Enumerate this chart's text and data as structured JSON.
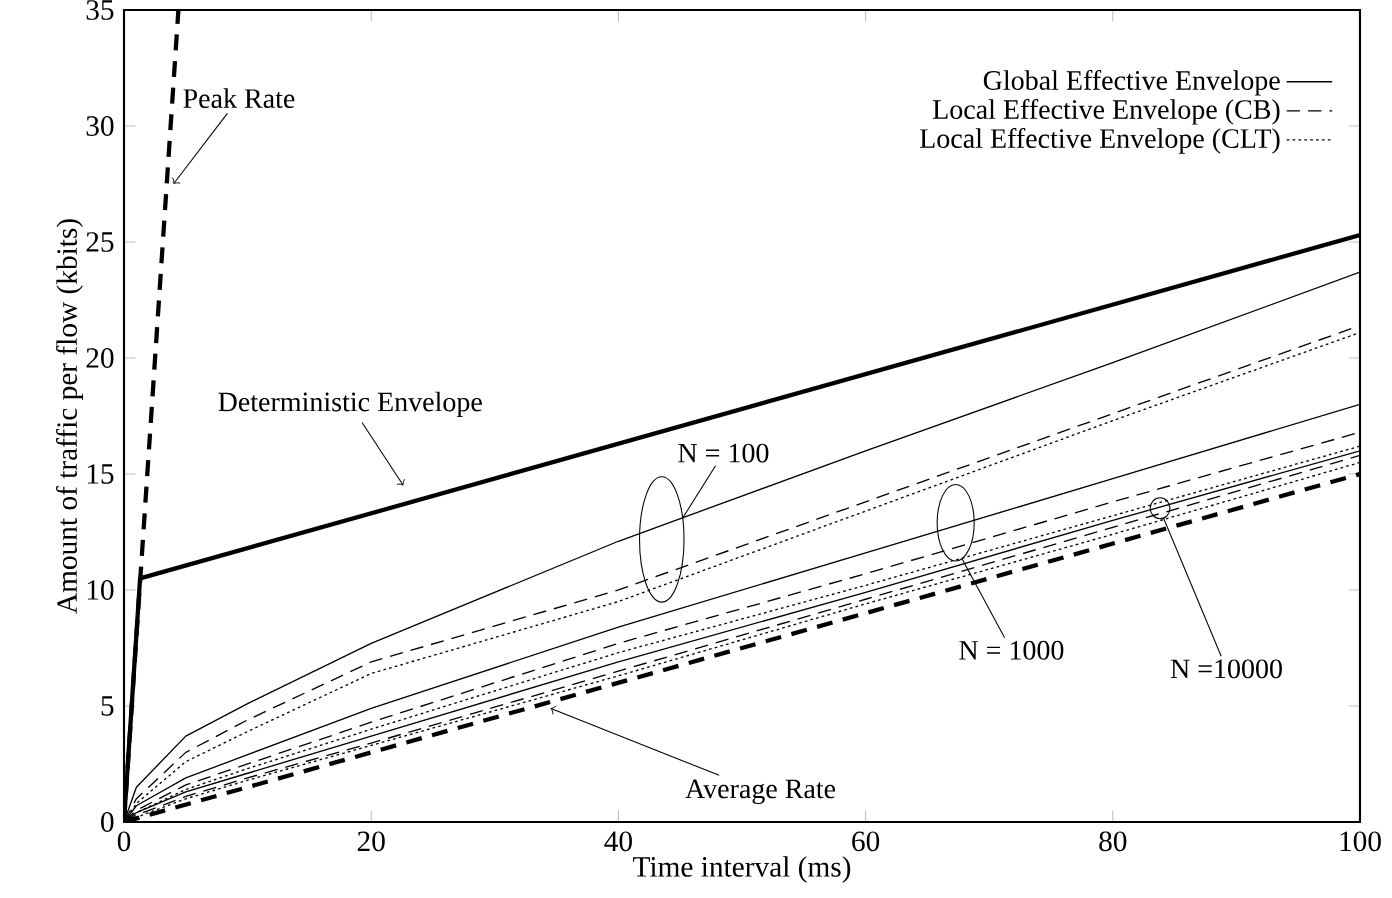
{
  "chart_data": {
    "type": "line",
    "xlabel": "Time interval (ms)",
    "ylabel": "Amount of traffic per flow (kbits)",
    "xlim": [
      0,
      100
    ],
    "ylim": [
      0,
      35
    ],
    "xticks": [
      0,
      20,
      40,
      60,
      80,
      100
    ],
    "yticks": [
      0,
      5,
      10,
      15,
      20,
      25,
      30,
      35
    ],
    "legend": "top right",
    "marker": "none",
    "series": [
      {
        "color": "#000000",
        "line_style": "dashed",
        "x": [
          0,
          4.4
        ],
        "values": [
          0,
          35
        ]
      },
      {
        "color": "#000000",
        "line_style": "solid",
        "x": [
          0,
          1.3,
          100
        ],
        "values": [
          0,
          10.5,
          25.3
        ]
      },
      {
        "color": "#000000",
        "line_style": "dashed",
        "x": [
          0,
          100
        ],
        "values": [
          0,
          15
        ]
      },
      {
        "name": "Global Effective Envelope",
        "color": "#000000",
        "line_style": "solid",
        "x": [
          0,
          1,
          5,
          10,
          20,
          40,
          60,
          80,
          100
        ],
        "values": [
          0,
          1.5,
          3.7,
          5.1,
          7.7,
          12.1,
          16.0,
          19.8,
          23.7
        ]
      },
      {
        "name": "Local Effective Envelope (CB)",
        "color": "#000000",
        "line_style": "dashed",
        "x": [
          0,
          1,
          5,
          10,
          20,
          40,
          60,
          80,
          100
        ],
        "values": [
          0,
          1.0,
          3.0,
          4.4,
          6.9,
          10.0,
          13.8,
          17.6,
          21.4
        ]
      },
      {
        "name": "Local Effective Envelope (CLT)",
        "color": "#000000",
        "line_style": "dotted",
        "x": [
          0,
          1,
          5,
          10,
          20,
          40,
          60,
          80,
          100
        ],
        "values": [
          0,
          0.8,
          2.6,
          3.9,
          6.4,
          9.5,
          13.4,
          17.3,
          21.1
        ]
      },
      {
        "color": "#000000",
        "line_style": "solid",
        "x": [
          0,
          1,
          5,
          10,
          20,
          40,
          60,
          80,
          100
        ],
        "values": [
          0,
          0.7,
          1.9,
          2.9,
          4.9,
          8.4,
          11.6,
          14.8,
          18.0
        ]
      },
      {
        "color": "#000000",
        "line_style": "dashed",
        "x": [
          0,
          1,
          5,
          10,
          20,
          40,
          60,
          80,
          100
        ],
        "values": [
          0,
          0.5,
          1.6,
          2.5,
          4.3,
          7.7,
          10.7,
          13.8,
          16.8
        ]
      },
      {
        "color": "#000000",
        "line_style": "dotted",
        "x": [
          0,
          1,
          5,
          10,
          20,
          40,
          60,
          80,
          100
        ],
        "values": [
          0,
          0.4,
          1.4,
          2.3,
          4.0,
          7.3,
          10.2,
          13.2,
          16.2
        ]
      },
      {
        "color": "#000000",
        "line_style": "solid",
        "x": [
          0,
          1,
          5,
          10,
          20,
          40,
          60,
          80,
          100
        ],
        "values": [
          0,
          0.4,
          1.3,
          2.1,
          3.7,
          6.9,
          9.9,
          13.0,
          16.0
        ]
      },
      {
        "color": "#000000",
        "line_style": "dashed",
        "x": [
          0,
          1,
          5,
          10,
          20,
          40,
          60,
          80,
          100
        ],
        "values": [
          0,
          0.3,
          1.1,
          1.9,
          3.4,
          6.5,
          9.6,
          12.7,
          15.8
        ]
      },
      {
        "color": "#000000",
        "line_style": "dotted",
        "x": [
          0,
          1,
          5,
          10,
          20,
          40,
          60,
          80,
          100
        ],
        "values": [
          0,
          0.2,
          1.0,
          1.8,
          3.3,
          6.3,
          9.4,
          12.4,
          15.5
        ]
      }
    ],
    "annotations": [
      {
        "text": "Peak Rate",
        "x": 4.0,
        "y": 27.5
      },
      {
        "text": "Deterministic Envelope",
        "x": 22.6,
        "y": 14.5
      },
      {
        "text": "Average Rate",
        "x": 34.5,
        "y": 4.9
      },
      {
        "text": "N = 100",
        "x": 45.2,
        "y": 13.1
      },
      {
        "text": "N = 1000",
        "x": 67.8,
        "y": 11.35
      },
      {
        "text": "N =10000",
        "x": 84.1,
        "y": 13.1
      }
    ]
  }
}
